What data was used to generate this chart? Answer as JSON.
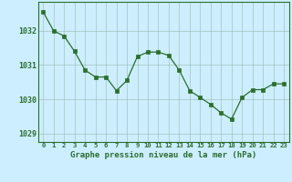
{
  "x": [
    0,
    1,
    2,
    3,
    4,
    5,
    6,
    7,
    8,
    9,
    10,
    11,
    12,
    13,
    14,
    15,
    16,
    17,
    18,
    19,
    20,
    21,
    22,
    23
  ],
  "y": [
    1032.55,
    1032.0,
    1031.85,
    1031.4,
    1030.85,
    1030.65,
    1030.65,
    1030.25,
    1030.55,
    1031.25,
    1031.38,
    1031.38,
    1031.28,
    1030.85,
    1030.25,
    1030.05,
    1029.85,
    1029.6,
    1029.42,
    1030.05,
    1030.28,
    1030.28,
    1030.45,
    1030.45
  ],
  "ylim": [
    1028.75,
    1032.85
  ],
  "yticks": [
    1029,
    1030,
    1031,
    1032
  ],
  "xtick_labels": [
    "0",
    "1",
    "2",
    "3",
    "4",
    "5",
    "6",
    "7",
    "8",
    "9",
    "10",
    "11",
    "12",
    "13",
    "14",
    "15",
    "16",
    "17",
    "18",
    "19",
    "20",
    "21",
    "22",
    "23"
  ],
  "line_color": "#2d6e2d",
  "marker_color": "#2d6e2d",
  "bg_color": "#cceeff",
  "grid_color": "#99bbaa",
  "xlabel": "Graphe pression niveau de la mer (hPa)",
  "xlabel_color": "#2d6e2d",
  "tick_label_color": "#2d6e2d",
  "spine_color": "#2d6e2d"
}
